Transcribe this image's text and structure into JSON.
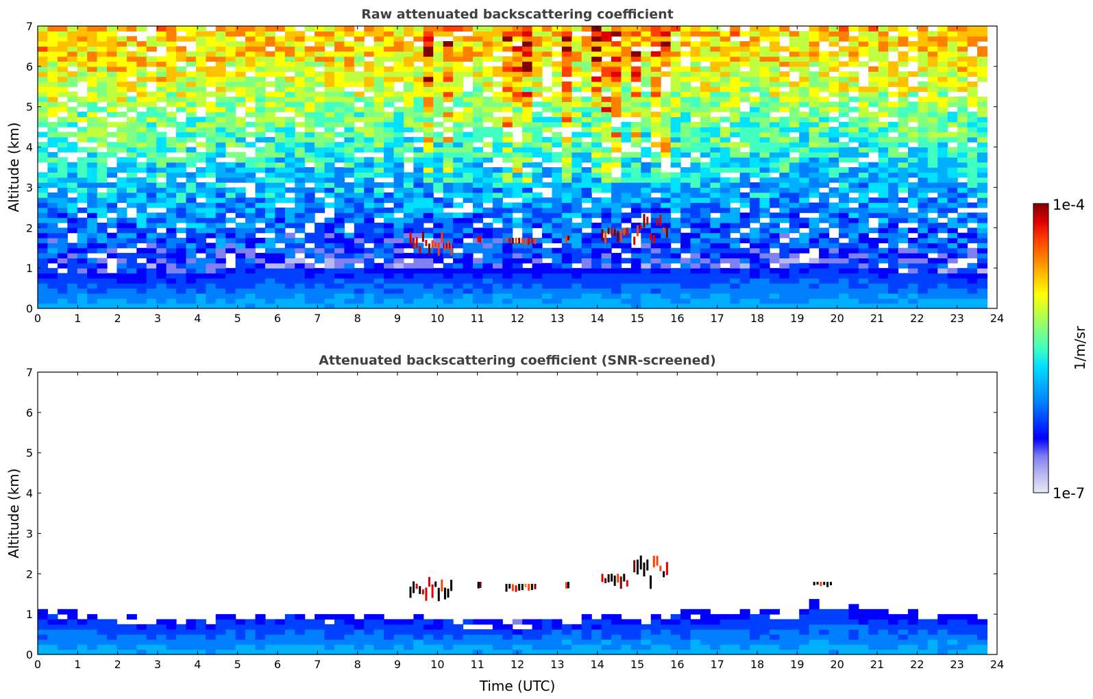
{
  "chart_data": [
    {
      "type": "heatmap",
      "title": "Raw attenuated backscattering coefficient",
      "xlabel": "",
      "ylabel": "Altitude (km)",
      "xlim": [
        0,
        24
      ],
      "ylim": [
        0,
        7
      ],
      "x_ticks": [
        "0",
        "1",
        "2",
        "3",
        "4",
        "5",
        "6",
        "7",
        "8",
        "9",
        "10",
        "11",
        "12",
        "13",
        "14",
        "15",
        "16",
        "17",
        "18",
        "19",
        "20",
        "21",
        "22",
        "23",
        "24"
      ],
      "y_ticks": [
        "0",
        "1",
        "2",
        "3",
        "4",
        "5",
        "6",
        "7"
      ],
      "data_end_time": 23.75,
      "color_scale": "log",
      "color_range": [
        "1e-7",
        "1e-4"
      ],
      "boundary_layer_top_km": [
        [
          0,
          0.9
        ],
        [
          2,
          0.75
        ],
        [
          4,
          0.8
        ],
        [
          6,
          1.0
        ],
        [
          8,
          0.95
        ],
        [
          9,
          0.9
        ],
        [
          10,
          0.9
        ],
        [
          12,
          0.9
        ],
        [
          14,
          0.9
        ],
        [
          16,
          1.0
        ],
        [
          17,
          0.95
        ],
        [
          18,
          1.0
        ],
        [
          19,
          0.95
        ],
        [
          20,
          1.1
        ],
        [
          21,
          0.9
        ],
        [
          22,
          0.85
        ],
        [
          23.75,
          0.8
        ]
      ],
      "cloud_features": [
        {
          "time_start": 9.3,
          "time_end": 10.4,
          "alt_km": [
            1.3,
            1.9
          ]
        },
        {
          "time_start": 11.0,
          "time_end": 11.1,
          "alt_km": [
            1.6,
            1.8
          ]
        },
        {
          "time_start": 11.7,
          "time_end": 12.5,
          "alt_km": [
            1.55,
            1.75
          ]
        },
        {
          "time_start": 13.2,
          "time_end": 13.3,
          "alt_km": [
            1.6,
            1.8
          ]
        },
        {
          "time_start": 14.1,
          "time_end": 14.8,
          "alt_km": [
            1.6,
            2.0
          ]
        },
        {
          "time_start": 14.9,
          "time_end": 15.8,
          "alt_km": [
            1.5,
            2.6
          ]
        }
      ],
      "precipitation_streaks_time": [
        9.8,
        10.3,
        11.7,
        12.1,
        13.2,
        14.1,
        14.5,
        14.9,
        15.4,
        15.7
      ]
    },
    {
      "type": "heatmap",
      "title": "Attenuated backscattering coefficient (SNR-screened)",
      "xlabel": "Time (UTC)",
      "ylabel": "Altitude (km)",
      "xlim": [
        0,
        24
      ],
      "ylim": [
        0,
        7
      ],
      "x_ticks": [
        "0",
        "1",
        "2",
        "3",
        "4",
        "5",
        "6",
        "7",
        "8",
        "9",
        "10",
        "11",
        "12",
        "13",
        "14",
        "15",
        "16",
        "17",
        "18",
        "19",
        "20",
        "21",
        "22",
        "23",
        "24"
      ],
      "y_ticks": [
        "0",
        "1",
        "2",
        "3",
        "4",
        "5",
        "6",
        "7"
      ],
      "data_end_time": 23.75,
      "color_scale": "log",
      "color_range": [
        "1e-7",
        "1e-4"
      ],
      "signal_top_km": [
        [
          0,
          1.05
        ],
        [
          1,
          1.0
        ],
        [
          2,
          0.9
        ],
        [
          3,
          0.85
        ],
        [
          4,
          0.85
        ],
        [
          5,
          0.9
        ],
        [
          6,
          1.0
        ],
        [
          7,
          0.95
        ],
        [
          8,
          0.9
        ],
        [
          9,
          1.0
        ],
        [
          10,
          0.85
        ],
        [
          11,
          0.8
        ],
        [
          12,
          0.75
        ],
        [
          13,
          0.85
        ],
        [
          14,
          0.9
        ],
        [
          15,
          0.85
        ],
        [
          16,
          1.05
        ],
        [
          17,
          1.0
        ],
        [
          18,
          1.1
        ],
        [
          19,
          0.95
        ],
        [
          19.5,
          1.35
        ],
        [
          20,
          1.2
        ],
        [
          21,
          1.05
        ],
        [
          22,
          1.0
        ],
        [
          23,
          0.95
        ],
        [
          23.75,
          0.9
        ]
      ],
      "cloud_features": [
        {
          "time_start": 9.3,
          "time_end": 10.4,
          "alt_km": [
            1.3,
            1.95
          ]
        },
        {
          "time_start": 11.0,
          "time_end": 11.1,
          "alt_km": [
            1.6,
            1.8
          ]
        },
        {
          "time_start": 11.7,
          "time_end": 12.5,
          "alt_km": [
            1.55,
            1.75
          ]
        },
        {
          "time_start": 13.2,
          "time_end": 13.3,
          "alt_km": [
            1.6,
            1.8
          ]
        },
        {
          "time_start": 14.1,
          "time_end": 14.8,
          "alt_km": [
            1.6,
            2.0
          ]
        },
        {
          "time_start": 14.9,
          "time_end": 15.8,
          "alt_km": [
            1.5,
            3.0
          ]
        },
        {
          "time_start": 19.4,
          "time_end": 19.9,
          "alt_km": [
            1.65,
            1.8
          ]
        }
      ]
    }
  ],
  "colorbar": {
    "max_label": "1e-4",
    "min_label": "1e-7",
    "unit_label": "1/m/sr",
    "colors": [
      "#e8e8f8",
      "#b8b8f0",
      "#8080f0",
      "#0000ff",
      "#0040ff",
      "#0080ff",
      "#00b0ff",
      "#00e0ff",
      "#40ffc0",
      "#80ff80",
      "#c0ff40",
      "#ffff00",
      "#ffc000",
      "#ff8000",
      "#ff4000",
      "#e00000",
      "#800000"
    ]
  }
}
